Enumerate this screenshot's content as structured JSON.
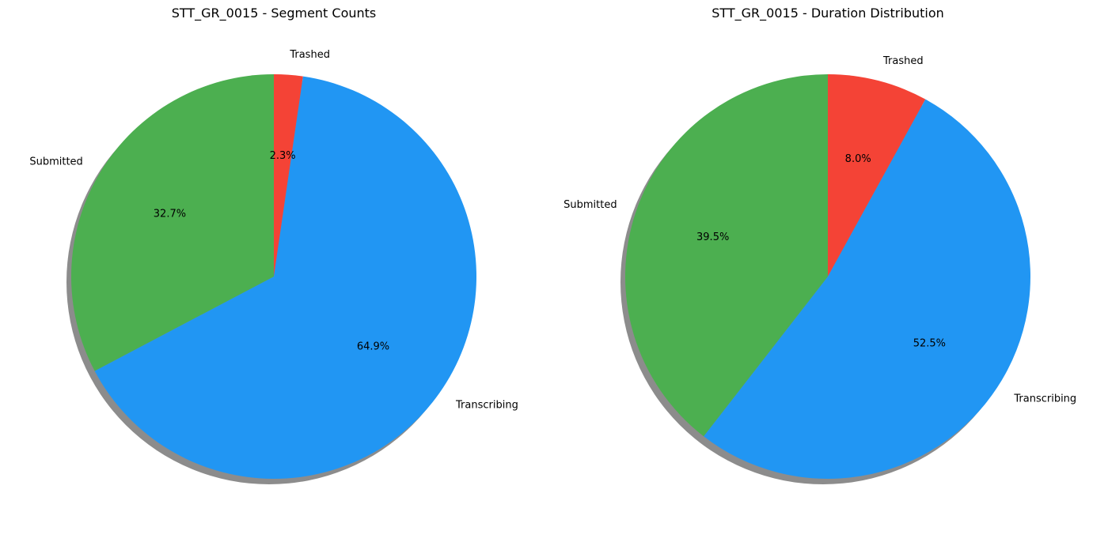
{
  "chart_data": [
    {
      "type": "pie",
      "title": "STT_GR_0015 - Segment Counts",
      "categories": [
        "Trashed",
        "Transcribing",
        "Submitted"
      ],
      "values": [
        2.3,
        64.9,
        32.7
      ],
      "value_labels": [
        "2.3%",
        "64.9%",
        "32.7%"
      ],
      "colors": [
        "#f44336",
        "#2196f3",
        "#4caf50"
      ],
      "start_angle_deg": 90,
      "direction": "clockwise",
      "shadow": true,
      "legend": "none"
    },
    {
      "type": "pie",
      "title": "STT_GR_0015 - Duration Distribution",
      "categories": [
        "Trashed",
        "Transcribing",
        "Submitted"
      ],
      "values": [
        8.0,
        52.5,
        39.5
      ],
      "value_labels": [
        "8.0%",
        "52.5%",
        "39.5%"
      ],
      "colors": [
        "#f44336",
        "#2196f3",
        "#4caf50"
      ],
      "start_angle_deg": 90,
      "direction": "clockwise",
      "shadow": true,
      "legend": "none"
    }
  ]
}
